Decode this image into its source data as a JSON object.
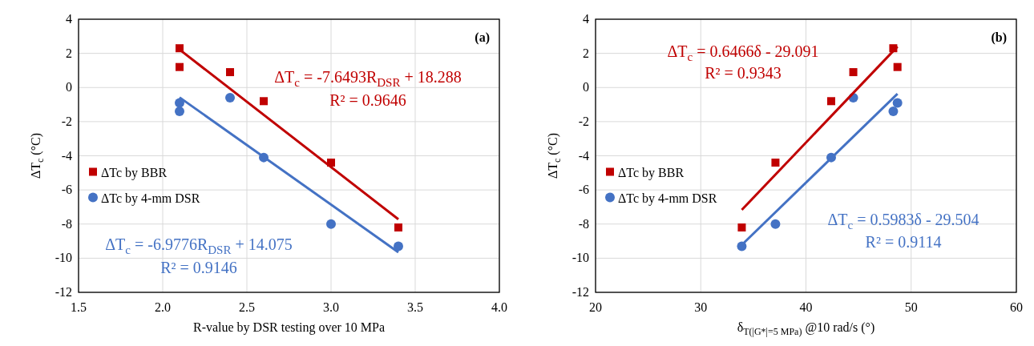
{
  "chart_data": [
    {
      "type": "scatter",
      "title": "(a)",
      "xlabel": "R-value by DSR testing over 10 MPa",
      "ylabel": "ΔT$_{c}$ (°C)",
      "xlim": [
        1.5,
        4.0
      ],
      "xticks": [
        {
          "value": 1.5,
          "label": "1.5"
        },
        {
          "value": 2.0,
          "label": "2.0"
        },
        {
          "value": 2.5,
          "label": "2.5"
        },
        {
          "value": 3.0,
          "label": "3.0"
        },
        {
          "value": 3.5,
          "label": "3.5"
        },
        {
          "value": 4.0,
          "label": "4.0"
        }
      ],
      "ylim": [
        -12,
        4
      ],
      "yticks": [
        -12,
        -10,
        -8,
        -6,
        -4,
        -2,
        0,
        2,
        4
      ],
      "grid": true,
      "legend": "left",
      "series": [
        {
          "name": "ΔTc by BBR",
          "color": "#c00000",
          "marker": "square",
          "x": [
            2.1,
            2.1,
            2.4,
            2.6,
            3.0,
            3.4
          ],
          "values": [
            2.3,
            1.2,
            0.9,
            -0.8,
            -4.4,
            -8.2
          ]
        },
        {
          "name": "ΔTc by 4-mm DSR",
          "color": "#4472c4",
          "marker": "circle",
          "x": [
            2.1,
            2.1,
            2.4,
            2.6,
            3.0,
            3.4
          ],
          "values": [
            -0.9,
            -1.4,
            -0.6,
            -4.1,
            -8.0,
            -9.3
          ]
        },
        {
          "type": "line",
          "color": "#c00000",
          "x": [
            2.1,
            3.4
          ],
          "values": [
            2.22,
            -7.72
          ]
        },
        {
          "type": "line",
          "color": "#4472c4",
          "x": [
            2.1,
            3.4
          ],
          "values": [
            -0.58,
            -9.65
          ]
        }
      ],
      "annotations": [
        "ΔT$_{c}$ = -7.6493R$_{DSR}$ + 18.288",
        "R² = 0.9646",
        "ΔT$_{c}$ = -6.9776R$_{DSR}$ + 14.075",
        "R² = 0.9146"
      ]
    },
    {
      "type": "scatter",
      "title": "(b)",
      "xlabel": "δ$_{T(|G*|=5 MPa)}$ @10 rad/s (°)",
      "ylabel": "ΔT$_{c}$ (°C)",
      "xlim": [
        20,
        60
      ],
      "xticks": [
        20,
        30,
        40,
        50,
        60
      ],
      "ylim": [
        -12,
        4
      ],
      "yticks": [
        -12,
        -10,
        -8,
        -6,
        -4,
        -2,
        0,
        2,
        4
      ],
      "grid": true,
      "legend": "left",
      "series": [
        {
          "name": "ΔTc by BBR",
          "color": "#c00000",
          "marker": "square",
          "x": [
            33.9,
            37.1,
            42.4,
            44.5,
            48.3,
            48.7
          ],
          "values": [
            -8.2,
            -4.4,
            -0.8,
            0.9,
            2.3,
            1.2
          ]
        },
        {
          "name": "ΔTc by 4-mm DSR",
          "color": "#4472c4",
          "marker": "circle",
          "x": [
            33.9,
            37.1,
            42.4,
            44.5,
            48.3,
            48.7
          ],
          "values": [
            -9.3,
            -8.0,
            -4.1,
            -0.6,
            -1.4,
            -0.9
          ]
        },
        {
          "type": "line",
          "color": "#c00000",
          "x": [
            33.9,
            48.7
          ],
          "values": [
            -7.17,
            2.4
          ]
        },
        {
          "type": "line",
          "color": "#4472c4",
          "x": [
            33.9,
            48.7
          ],
          "values": [
            -9.22,
            -0.37
          ]
        }
      ],
      "annotations": [
        "ΔT$_{c}$ = 0.6466δ - 29.091",
        "R² = 0.9343",
        "ΔT$_{c}$ = 0.5983δ - 29.504",
        "R² = 0.9114"
      ]
    }
  ]
}
